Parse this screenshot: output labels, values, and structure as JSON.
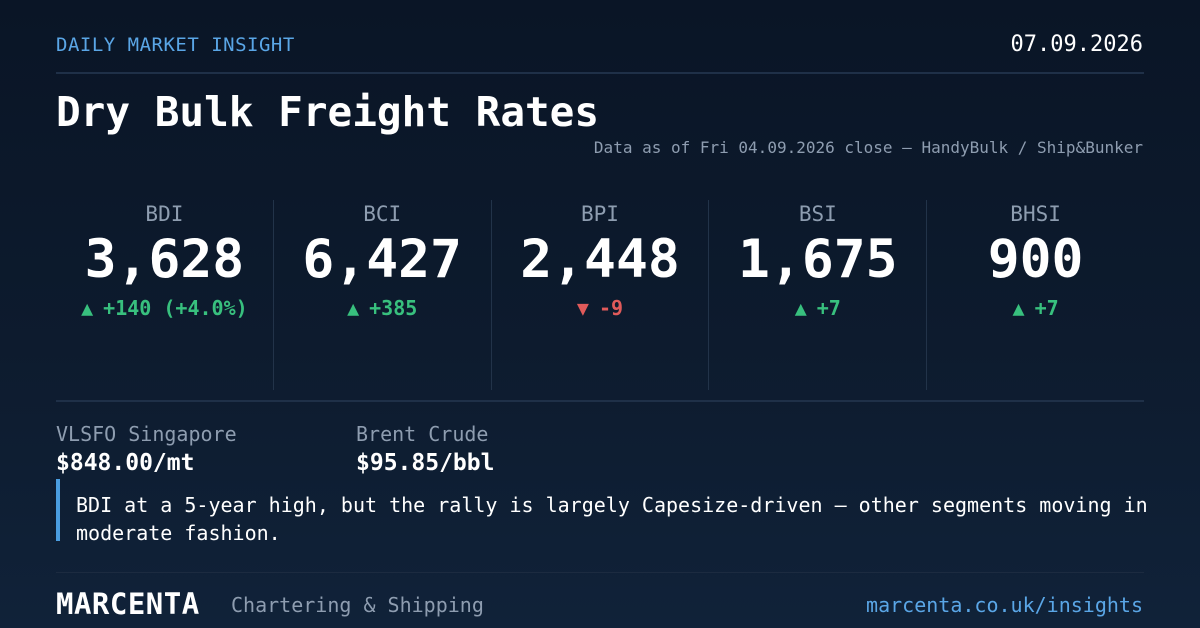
{
  "header": {
    "kicker": "DAILY MARKET INSIGHT",
    "date": "07.09.2026",
    "title": "Dry Bulk Freight Rates",
    "source": "Data as of Fri 04.09.2026 close — HandyBulk / Ship&Bunker"
  },
  "indices": [
    {
      "label": "BDI",
      "value": "3,628",
      "arrow": "▲",
      "change": "+140 (+4.0%)",
      "direction": "up"
    },
    {
      "label": "BCI",
      "value": "6,427",
      "arrow": "▲",
      "change": "+385",
      "direction": "up"
    },
    {
      "label": "BPI",
      "value": "2,448",
      "arrow": "▼",
      "change": "-9",
      "direction": "down"
    },
    {
      "label": "BSI",
      "value": "1,675",
      "arrow": "▲",
      "change": "+7",
      "direction": "up"
    },
    {
      "label": "BHSI",
      "value": "900",
      "arrow": "▲",
      "change": "+7",
      "direction": "up"
    }
  ],
  "prices": [
    {
      "label": "VLSFO Singapore",
      "value": "$848.00/mt"
    },
    {
      "label": "Brent Crude",
      "value": "$95.85/bbl"
    }
  ],
  "note": "BDI at a 5-year high, but the rally is largely Capesize-driven — other segments moving in moderate fashion.",
  "footer": {
    "brand": "MARCENTA",
    "tagline": "Chartering & Shipping",
    "url": "marcenta.co.uk/insights"
  },
  "colors": {
    "accent": "#5aa6e6",
    "up": "#38c07e",
    "down": "#e05a5a",
    "background": "#0d1b2e"
  }
}
